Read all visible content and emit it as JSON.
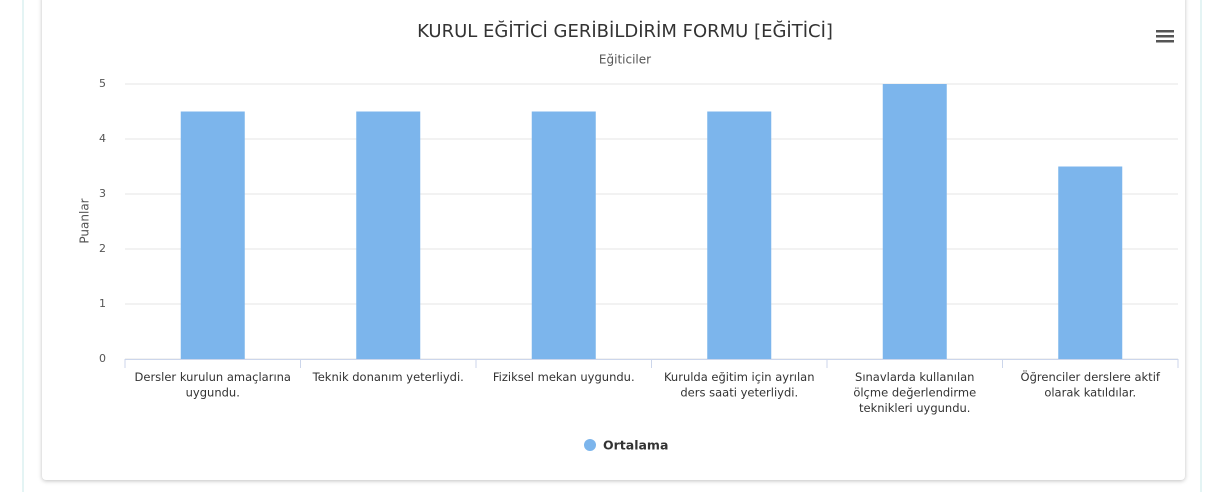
{
  "chart_data": {
    "type": "bar",
    "title": "KURUL EĞİTİCİ GERİBİLDİRİM FORMU [EĞİTİCİ]",
    "subtitle": "Eğiticiler",
    "y_label": "Puanlar",
    "categories": [
      "Dersler kurulun amaçlarına uygundu.",
      "Teknik donanım yeterliydi.",
      "Fiziksel mekan uygundu.",
      "Kurulda eğitim için ayrılan ders saati yeterliydi.",
      "Sınavlarda kullanılan ölçme değerlendirme teknikleri uygundu.",
      "Öğrenciler derslere aktif olarak katıldılar."
    ],
    "series": [
      {
        "name": "Ortalama",
        "color": "#7cb5ec",
        "values": [
          4.5,
          4.5,
          4.5,
          4.5,
          5,
          3.5
        ]
      }
    ],
    "ylim": [
      0,
      5
    ],
    "yticks": [
      0,
      1,
      2,
      3,
      4,
      5
    ],
    "grid": true,
    "legend": "bottom"
  }
}
